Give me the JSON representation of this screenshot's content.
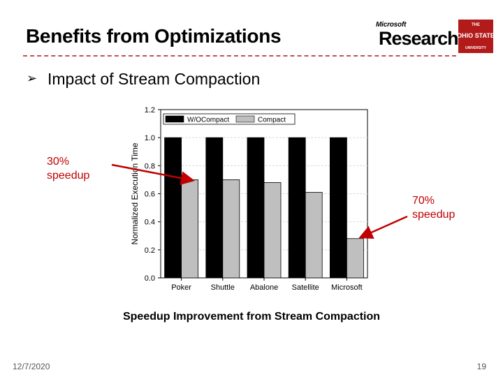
{
  "slide": {
    "title": "Benefits from Optimizations",
    "bullet": "Impact of Stream Compaction",
    "caption": "Speedup Improvement from Stream Compaction",
    "date": "12/7/2020",
    "page_number": "19"
  },
  "logos": {
    "microsoft_small": "Microsoft",
    "microsoft_big": "Research",
    "osu_top": "THE",
    "osu_mid": "OHIO STATE",
    "osu_bottom": "UNIVERSITY"
  },
  "annotations": {
    "left": [
      "30%",
      "speedup"
    ],
    "right": [
      "70%",
      "speedup"
    ]
  },
  "colors": {
    "accent": "#c00000",
    "divider": "#c0504d",
    "bar_wo": "#000000",
    "bar_compact": "#bfbfbf"
  },
  "icons": {
    "bullet": "chevron-arrow-icon"
  },
  "chart_data": {
    "type": "bar",
    "title": "",
    "xlabel": "",
    "ylabel": "Normalized Execution Time",
    "ylim": [
      0,
      1.2
    ],
    "yticks": [
      "0.0",
      "0.2",
      "0.4",
      "0.6",
      "0.8",
      "1.0",
      "1.2"
    ],
    "categories": [
      "Poker",
      "Shuttle",
      "Abalone",
      "Satellite",
      "Microsoft"
    ],
    "series": [
      {
        "name": "W/OCompact",
        "values": [
          1.0,
          1.0,
          1.0,
          1.0,
          1.0
        ]
      },
      {
        "name": "Compact",
        "values": [
          0.7,
          0.7,
          0.68,
          0.61,
          0.28
        ]
      }
    ],
    "legend": "top"
  }
}
